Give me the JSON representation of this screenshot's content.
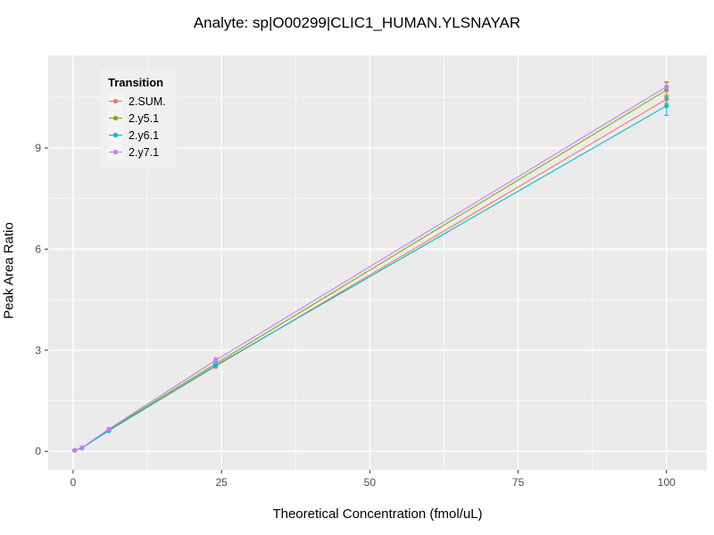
{
  "chart_data": {
    "type": "line",
    "title": "Analyte: sp|O00299|CLIC1_HUMAN.YLSNAYAR",
    "xlabel": "Theoretical Concentration (fmol/uL)",
    "ylabel": "Peak Area Ratio",
    "legend_title": "Transition",
    "xlim": [
      -4.2,
      106.8
    ],
    "ylim": [
      -0.55,
      11.75
    ],
    "xticks": [
      0,
      25,
      50,
      75,
      100
    ],
    "yticks": [
      0,
      3,
      6,
      9
    ],
    "grid": "on",
    "legend_position": "top-left-inside",
    "panel_color": "#EBEBEB",
    "grid_color": "#FFFFFF",
    "tick_label_color": "#4D4D4D",
    "x": [
      0.25,
      1.5,
      6,
      24,
      100
    ],
    "series": [
      {
        "name": "2.SUM.",
        "color": "#F8766D",
        "values": [
          0.03,
          0.1,
          0.62,
          2.52,
          10.45
        ],
        "yerr": [
          0.02,
          0.02,
          0.02,
          0.05,
          0.12
        ]
      },
      {
        "name": "2.y5.1",
        "color": "#7CAE00",
        "values": [
          0.03,
          0.11,
          0.64,
          2.6,
          10.72
        ],
        "yerr": [
          0.02,
          0.02,
          0.02,
          0.05,
          0.22
        ]
      },
      {
        "name": "2.y6.1",
        "color": "#00BFC4",
        "values": [
          0.03,
          0.1,
          0.61,
          2.55,
          10.25
        ],
        "yerr": [
          0.02,
          0.02,
          0.02,
          0.06,
          0.28
        ]
      },
      {
        "name": "2.y7.1",
        "color": "#C77CFF",
        "values": [
          0.03,
          0.11,
          0.66,
          2.7,
          10.82
        ],
        "yerr": [
          0.02,
          0.02,
          0.02,
          0.08,
          0.15
        ]
      }
    ]
  }
}
